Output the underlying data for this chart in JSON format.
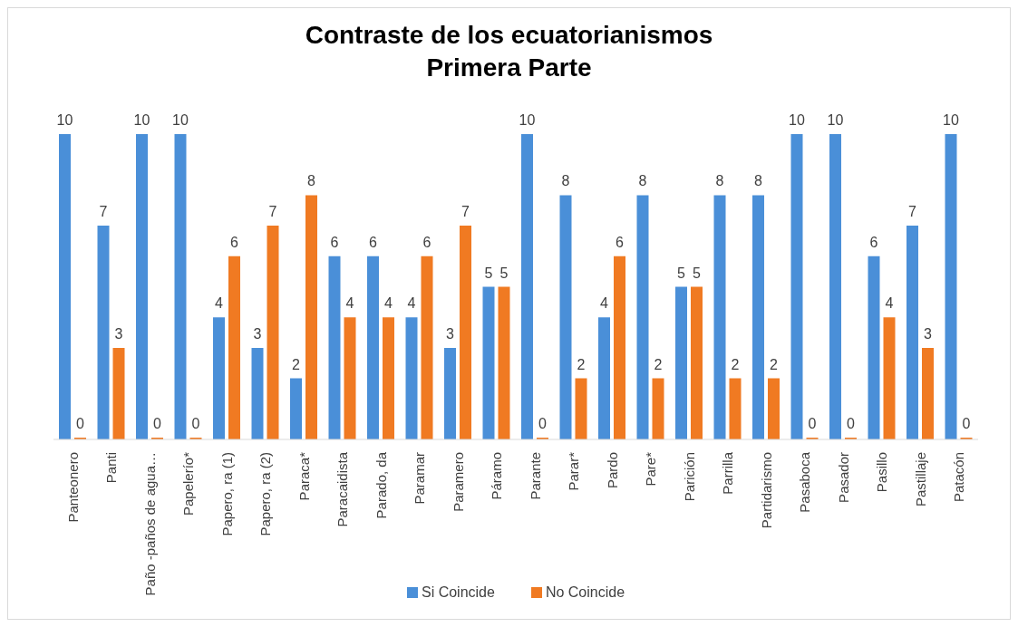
{
  "chart_data": {
    "type": "bar",
    "title": "Contraste  de los ecuatorianismos",
    "subtitle": "Primera Parte",
    "categories": [
      "Panteonero",
      "Panti",
      "Paño -paños de agua…",
      "Papelerío*",
      "Papero, ra (1)",
      "Papero, ra (2)",
      "Paraca*",
      "Paracaidista",
      "Parado, da",
      "Paramar",
      "Paramero",
      "Páramo",
      "Parante",
      "Parar*",
      "Pardo",
      "Pare*",
      "Parición",
      "Parrilla",
      "Partidarismo",
      "Pasaboca",
      "Pasador",
      "Pasillo",
      "Pastillaje",
      "Patacón"
    ],
    "series": [
      {
        "name": "Si Coincide",
        "color": "#4a8fd8",
        "values": [
          10,
          7,
          10,
          10,
          4,
          3,
          2,
          6,
          6,
          4,
          3,
          5,
          10,
          8,
          4,
          8,
          5,
          8,
          8,
          10,
          10,
          6,
          7,
          10
        ]
      },
      {
        "name": "No Coincide",
        "color": "#f07a22",
        "values": [
          0,
          3,
          0,
          0,
          6,
          7,
          8,
          4,
          4,
          6,
          7,
          5,
          0,
          2,
          6,
          2,
          5,
          2,
          2,
          0,
          0,
          4,
          3,
          0
        ]
      }
    ],
    "data_labels": true,
    "grid": false,
    "legend": "bottom"
  }
}
